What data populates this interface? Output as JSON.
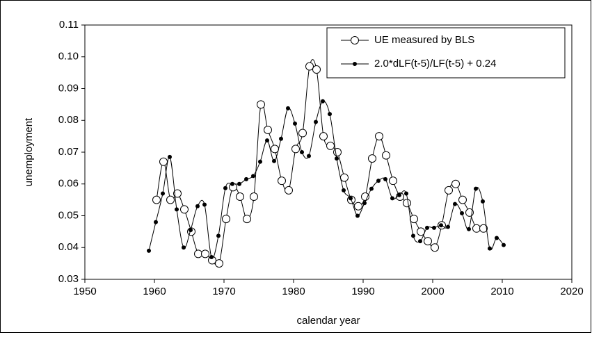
{
  "chart_data": {
    "type": "line",
    "xlabel": "calendar year",
    "ylabel": "unemployment",
    "xlim": [
      1950,
      2020
    ],
    "xticks": [
      1950,
      1960,
      1970,
      1980,
      1990,
      2000,
      2010,
      2020
    ],
    "ylim": [
      0.03,
      0.11
    ],
    "yticks": [
      0.03,
      0.04,
      0.05,
      0.06,
      0.07,
      0.08,
      0.09,
      {
        "value": 0.1,
        "label": "0.10"
      },
      0.11
    ],
    "legend": "upper right",
    "series": [
      {
        "name": "UE measured by BLS",
        "color": "#000000",
        "marker": "open-circle",
        "x": [
          1960.3,
          1961.3,
          1962.3,
          1963.3,
          1964.3,
          1965.3,
          1966.3,
          1967.3,
          1968.3,
          1969.3,
          1970.3,
          1971.3,
          1972.3,
          1973.3,
          1974.3,
          1975.3,
          1976.3,
          1977.3,
          1978.3,
          1979.3,
          1980.3,
          1981.3,
          1982.3,
          1983.3,
          1984.3,
          1985.3,
          1986.3,
          1987.3,
          1988.3,
          1989.3,
          1990.3,
          1991.3,
          1992.3,
          1993.3,
          1994.3,
          1995.3,
          1996.3,
          1997.3,
          1998.3,
          1999.3,
          2000.3,
          2001.3,
          2002.3,
          2003.3,
          2004.3,
          2005.3,
          2006.3,
          2007.3
        ],
        "values": [
          0.055,
          0.067,
          0.055,
          0.057,
          0.052,
          0.045,
          0.038,
          0.038,
          0.036,
          0.035,
          0.049,
          0.059,
          0.056,
          0.049,
          0.056,
          0.085,
          0.077,
          0.071,
          0.061,
          0.058,
          0.071,
          0.076,
          0.097,
          0.096,
          0.075,
          0.072,
          0.07,
          0.062,
          0.055,
          0.053,
          0.056,
          0.068,
          0.075,
          0.069,
          0.061,
          0.056,
          0.054,
          0.049,
          0.045,
          0.042,
          0.04,
          0.047,
          0.058,
          0.06,
          0.055,
          0.051,
          0.046,
          0.046
        ]
      },
      {
        "name": "2.0*dLF(t-5)/LF(t-5) + 0.24",
        "color": "#000000",
        "marker": "filled-dot",
        "x": [
          1959.2,
          1960.2,
          1961.2,
          1962.2,
          1963.2,
          1964.2,
          1965.2,
          1966.2,
          1967.2,
          1968.2,
          1969.2,
          1970.2,
          1971.2,
          1972.2,
          1973.2,
          1974.2,
          1975.2,
          1976.2,
          1977.2,
          1978.2,
          1979.2,
          1980.2,
          1981.2,
          1982.2,
          1983.2,
          1984.2,
          1985.2,
          1986.2,
          1987.2,
          1988.2,
          1989.2,
          1990.2,
          1991.2,
          1992.2,
          1993.2,
          1994.2,
          1995.2,
          1996.2,
          1997.2,
          1998.2,
          1999.2,
          2000.2,
          2001.2,
          2002.2,
          2003.2,
          2004.2,
          2005.2,
          2006.2,
          2007.2,
          2008.2,
          2009.2,
          2010.2
        ],
        "values": [
          0.039,
          0.048,
          0.057,
          0.0685,
          0.052,
          0.04,
          0.0455,
          0.053,
          0.0535,
          0.037,
          0.0437,
          0.0587,
          0.06,
          0.06,
          0.0615,
          0.0625,
          0.067,
          0.0737,
          0.0672,
          0.0742,
          0.0838,
          0.079,
          0.07,
          0.0688,
          0.0795,
          0.086,
          0.082,
          0.068,
          0.058,
          0.0555,
          0.05,
          0.054,
          0.0585,
          0.061,
          0.0615,
          0.0555,
          0.0565,
          0.057,
          0.0437,
          0.042,
          0.0462,
          0.0462,
          0.047,
          0.0465,
          0.0537,
          0.0508,
          0.0458,
          0.0585,
          0.0545,
          0.0397,
          0.043,
          0.0408
        ]
      }
    ]
  }
}
